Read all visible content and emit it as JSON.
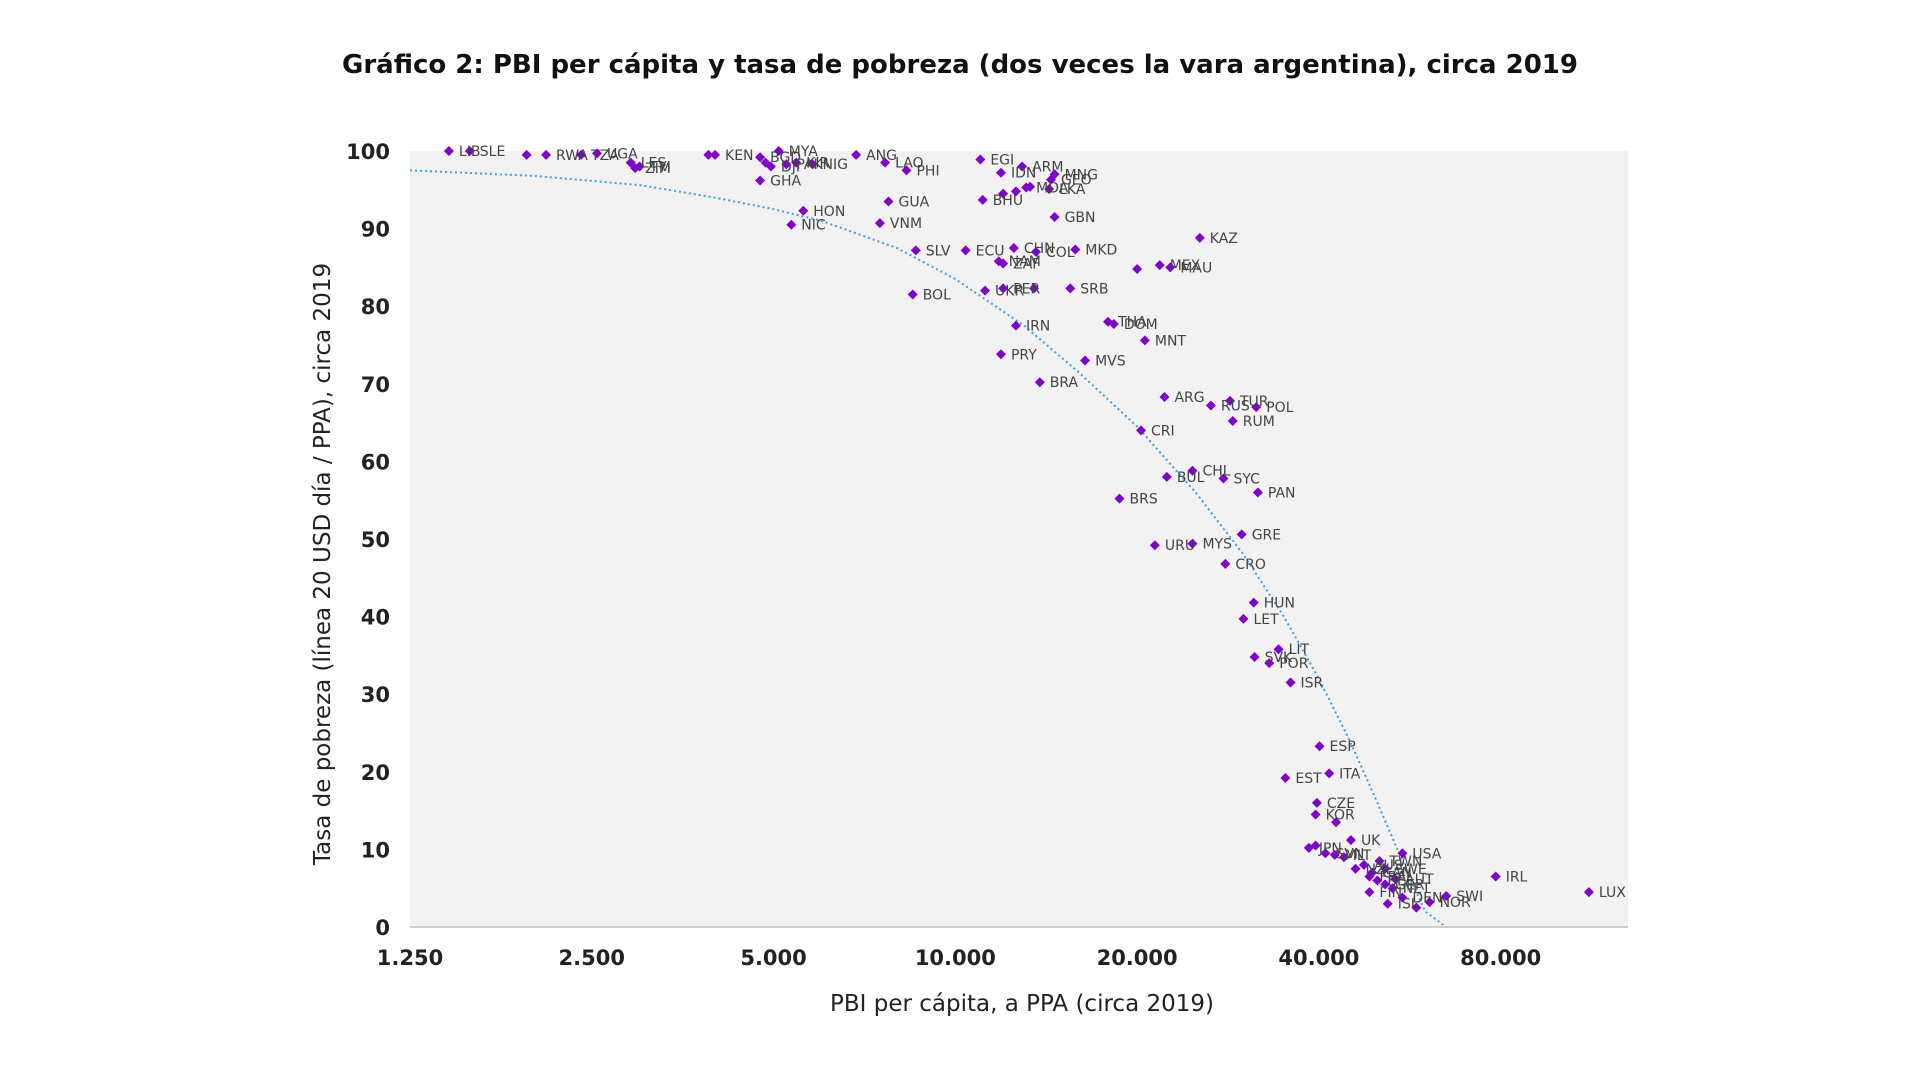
{
  "chart_data": {
    "type": "scatter",
    "title": "Gráfico 2: PBI per cápita y tasa de pobreza (dos veces la vara argentina), circa 2019",
    "xlabel": "PBI per cápita, a PPA (circa 2019)",
    "ylabel": "Tasa de pobreza (línea 20 USD día / PPA), circa 2019",
    "x_scale": "log",
    "xlim": [
      1250,
      130000
    ],
    "ylim": [
      0,
      100
    ],
    "x_ticks": [
      1250,
      2500,
      5000,
      10000,
      20000,
      40000,
      80000
    ],
    "x_tick_labels": [
      "1.250",
      "2.500",
      "5.000",
      "10.000",
      "20.000",
      "40.000",
      "80.000"
    ],
    "y_ticks": [
      0,
      10,
      20,
      30,
      40,
      50,
      60,
      70,
      80,
      90,
      100
    ],
    "y_tick_labels": [
      "0",
      "10",
      "20",
      "30",
      "40",
      "50",
      "60",
      "70",
      "80",
      "90",
      "100"
    ],
    "grid": false,
    "marker_color": "#8000d0",
    "trend_color": "#3aa0e8",
    "plot_background": "#f2f2f2",
    "trendline": {
      "x": [
        1250,
        2000,
        3000,
        4000,
        5000,
        6000,
        8000,
        10000,
        13000,
        16000,
        20000,
        25000,
        30000,
        35000,
        40000,
        45000,
        50000,
        55000,
        60000,
        65000
      ],
      "y": [
        97.5,
        96.8,
        95.6,
        94.0,
        92.5,
        91.0,
        87.5,
        83.5,
        77.5,
        71.5,
        64.5,
        56.0,
        48.0,
        40.0,
        32.0,
        24.0,
        16.0,
        8.5,
        2.0,
        -4.0
      ]
    },
    "points": [
      {
        "label": "LIB",
        "x": 1450,
        "y": 100
      },
      {
        "label": "SLE",
        "x": 1570,
        "y": 100
      },
      {
        "label": "",
        "x": 1950,
        "y": 99.5
      },
      {
        "label": "RWA",
        "x": 2100,
        "y": 99.5
      },
      {
        "label": "TZA",
        "x": 2400,
        "y": 99.5
      },
      {
        "label": "UGA",
        "x": 2550,
        "y": 99.7
      },
      {
        "label": "LES",
        "x": 2900,
        "y": 98.5
      },
      {
        "label": "ZIM",
        "x": 2950,
        "y": 97.8
      },
      {
        "label": "TYI",
        "x": 3000,
        "y": 98.0
      },
      {
        "label": "",
        "x": 3900,
        "y": 99.5
      },
      {
        "label": "KEN",
        "x": 4000,
        "y": 99.5
      },
      {
        "label": "BGD",
        "x": 4750,
        "y": 99.2
      },
      {
        "label": "",
        "x": 4850,
        "y": 98.5
      },
      {
        "label": "GHA",
        "x": 4750,
        "y": 96.2
      },
      {
        "label": "DJI",
        "x": 4950,
        "y": 98.0
      },
      {
        "label": "MYA",
        "x": 5100,
        "y": 100
      },
      {
        "label": "PAK",
        "x": 5250,
        "y": 98.3
      },
      {
        "label": "KIR",
        "x": 5450,
        "y": 98.5
      },
      {
        "label": "NIG",
        "x": 5800,
        "y": 98.3
      },
      {
        "label": "HON",
        "x": 5600,
        "y": 92.3
      },
      {
        "label": "NIC",
        "x": 5350,
        "y": 90.5
      },
      {
        "label": "ANG",
        "x": 6850,
        "y": 99.5
      },
      {
        "label": "LAO",
        "x": 7650,
        "y": 98.5
      },
      {
        "label": "PHI",
        "x": 8300,
        "y": 97.5
      },
      {
        "label": "GUA",
        "x": 7750,
        "y": 93.5
      },
      {
        "label": "VNM",
        "x": 7500,
        "y": 90.7
      },
      {
        "label": "SLV",
        "x": 8600,
        "y": 87.2
      },
      {
        "label": "ECU",
        "x": 10400,
        "y": 87.2
      },
      {
        "label": "BOL",
        "x": 8500,
        "y": 81.5
      },
      {
        "label": "NAM",
        "x": 11800,
        "y": 85.8
      },
      {
        "label": "UKR",
        "x": 11200,
        "y": 82.0
      },
      {
        "label": "EGI",
        "x": 11000,
        "y": 98.9
      },
      {
        "label": "IDN",
        "x": 11900,
        "y": 97.2
      },
      {
        "label": "ARM",
        "x": 12900,
        "y": 98.0
      },
      {
        "label": "",
        "x": 13300,
        "y": 95.4
      },
      {
        "label": "BHU",
        "x": 11100,
        "y": 93.7
      },
      {
        "label": "",
        "x": 12000,
        "y": 94.5
      },
      {
        "label": "",
        "x": 12600,
        "y": 94.8
      },
      {
        "label": "MDA",
        "x": 13100,
        "y": 95.3
      },
      {
        "label": "GEO",
        "x": 14400,
        "y": 96.3
      },
      {
        "label": "MNG",
        "x": 14600,
        "y": 97.0
      },
      {
        "label": "LKA",
        "x": 14300,
        "y": 95.1
      },
      {
        "label": "GBN",
        "x": 14600,
        "y": 91.5
      },
      {
        "label": "CHN",
        "x": 12500,
        "y": 87.5
      },
      {
        "label": "ZAF",
        "x": 12000,
        "y": 85.5
      },
      {
        "label": "COL",
        "x": 13600,
        "y": 87.0
      },
      {
        "label": "MKD",
        "x": 15800,
        "y": 87.3
      },
      {
        "label": "PER",
        "x": 12000,
        "y": 82.3
      },
      {
        "label": "",
        "x": 13500,
        "y": 82.3
      },
      {
        "label": "SRB",
        "x": 15500,
        "y": 82.3
      },
      {
        "label": "IRN",
        "x": 12600,
        "y": 77.5
      },
      {
        "label": "PRY",
        "x": 11900,
        "y": 73.8
      },
      {
        "label": "BRA",
        "x": 13800,
        "y": 70.2
      },
      {
        "label": "MVS",
        "x": 16400,
        "y": 73.0
      },
      {
        "label": "DOM",
        "x": 18300,
        "y": 77.7
      },
      {
        "label": "THA",
        "x": 17900,
        "y": 78.0
      },
      {
        "label": "MNT",
        "x": 20600,
        "y": 75.6
      },
      {
        "label": "",
        "x": 20000,
        "y": 84.8
      },
      {
        "label": "MEX",
        "x": 21800,
        "y": 85.3
      },
      {
        "label": "MAU",
        "x": 22700,
        "y": 85.0
      },
      {
        "label": "KAZ",
        "x": 25400,
        "y": 88.8
      },
      {
        "label": "ARG",
        "x": 22200,
        "y": 68.3
      },
      {
        "label": "RUS",
        "x": 26500,
        "y": 67.2
      },
      {
        "label": "TUR",
        "x": 28500,
        "y": 67.8
      },
      {
        "label": "POL",
        "x": 31500,
        "y": 67.0
      },
      {
        "label": "RUM",
        "x": 28800,
        "y": 65.2
      },
      {
        "label": "CRI",
        "x": 20300,
        "y": 64.0
      },
      {
        "label": "BUL",
        "x": 22400,
        "y": 58.0
      },
      {
        "label": "CHL",
        "x": 24700,
        "y": 58.8
      },
      {
        "label": "SYC",
        "x": 27800,
        "y": 57.8
      },
      {
        "label": "PAN",
        "x": 31700,
        "y": 56.0
      },
      {
        "label": "BRS",
        "x": 18700,
        "y": 55.2
      },
      {
        "label": "URU",
        "x": 21400,
        "y": 49.2
      },
      {
        "label": "MYS",
        "x": 24700,
        "y": 49.4
      },
      {
        "label": "GRE",
        "x": 29800,
        "y": 50.6
      },
      {
        "label": "CRO",
        "x": 28000,
        "y": 46.8
      },
      {
        "label": "HUN",
        "x": 31200,
        "y": 41.8
      },
      {
        "label": "LET",
        "x": 30000,
        "y": 39.7
      },
      {
        "label": "SVK",
        "x": 31300,
        "y": 34.8
      },
      {
        "label": "LIT",
        "x": 34300,
        "y": 35.8
      },
      {
        "label": "POR",
        "x": 33100,
        "y": 34.0
      },
      {
        "label": "ISR",
        "x": 35900,
        "y": 31.5
      },
      {
        "label": "ESP",
        "x": 40100,
        "y": 23.3
      },
      {
        "label": "EST",
        "x": 35200,
        "y": 19.2
      },
      {
        "label": "ITA",
        "x": 41600,
        "y": 19.8
      },
      {
        "label": "CZE",
        "x": 39700,
        "y": 16.0
      },
      {
        "label": "KOR",
        "x": 39500,
        "y": 14.5
      },
      {
        "label": "",
        "x": 42700,
        "y": 13.5
      },
      {
        "label": "UK",
        "x": 45200,
        "y": 11.2
      },
      {
        "label": "TWN",
        "x": 50400,
        "y": 8.5
      },
      {
        "label": "USA",
        "x": 55000,
        "y": 9.5
      },
      {
        "label": "JPN",
        "x": 38500,
        "y": 10.2
      },
      {
        "label": "",
        "x": 39500,
        "y": 10.5
      },
      {
        "label": "SVN",
        "x": 41000,
        "y": 9.5
      },
      {
        "label": "MLT",
        "x": 42500,
        "y": 9.3
      },
      {
        "label": "",
        "x": 44000,
        "y": 9.0
      },
      {
        "label": "NZL",
        "x": 46000,
        "y": 7.5
      },
      {
        "label": "AUS",
        "x": 47500,
        "y": 8.0
      },
      {
        "label": "CAN",
        "x": 49000,
        "y": 7.0
      },
      {
        "label": "SWE",
        "x": 51500,
        "y": 7.5
      },
      {
        "label": "FRA",
        "x": 48500,
        "y": 6.5
      },
      {
        "label": "BEL",
        "x": 50000,
        "y": 6.0
      },
      {
        "label": "AUT",
        "x": 53500,
        "y": 6.2
      },
      {
        "label": "FIN",
        "x": 48500,
        "y": 4.5
      },
      {
        "label": "GER",
        "x": 51500,
        "y": 5.5
      },
      {
        "label": "NET",
        "x": 53000,
        "y": 5.0
      },
      {
        "label": "DEN",
        "x": 55000,
        "y": 3.8
      },
      {
        "label": "ISL",
        "x": 52000,
        "y": 3.0
      },
      {
        "label": "NOR",
        "x": 61000,
        "y": 3.2
      },
      {
        "label": "",
        "x": 58000,
        "y": 2.5
      },
      {
        "label": "SWI",
        "x": 65000,
        "y": 4.0
      },
      {
        "label": "IRL",
        "x": 78500,
        "y": 6.5
      },
      {
        "label": "LUX",
        "x": 112000,
        "y": 4.5
      }
    ]
  }
}
